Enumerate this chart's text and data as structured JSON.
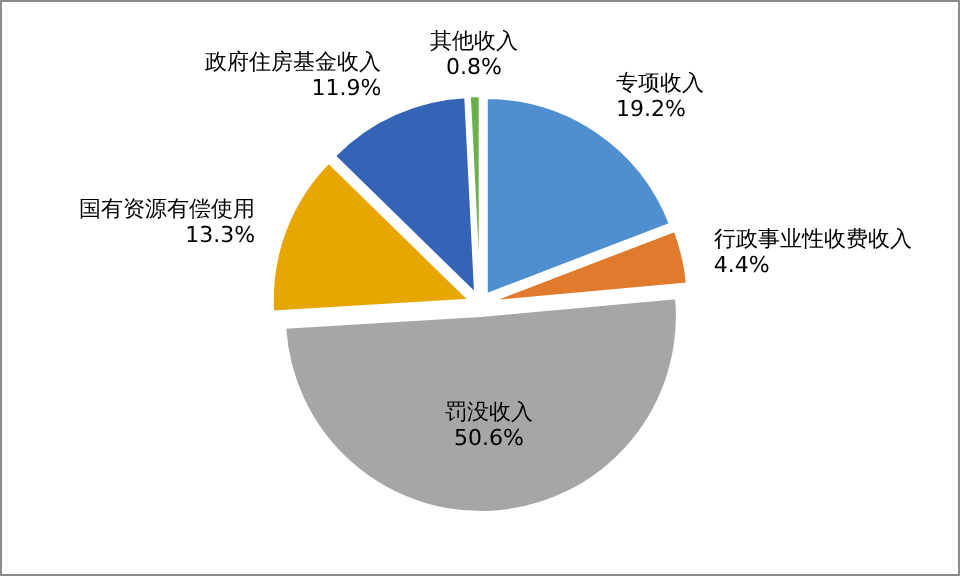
{
  "chart_data": {
    "type": "pie",
    "categories": [
      "专项收入",
      "行政事业性收费收入",
      "罚没收入",
      "国有资源有偿使用",
      "政府住房基金收入",
      "其他收入"
    ],
    "values": [
      19.2,
      4.4,
      50.6,
      13.3,
      11.9,
      0.8
    ],
    "colors": [
      "#4f8fd0",
      "#e07a2c",
      "#a6a6a6",
      "#e8a600",
      "#3563b5",
      "#6ab04c"
    ],
    "value_labels": [
      "19.2%",
      "4.4%",
      "50.6%",
      "13.3%",
      "11.9%",
      "0.8%"
    ]
  }
}
